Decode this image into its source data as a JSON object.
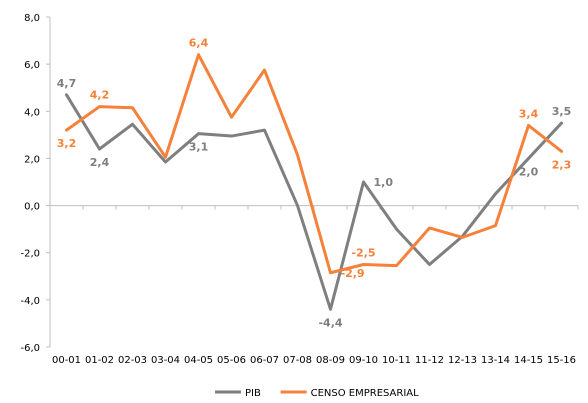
{
  "colors": {
    "pib": "#7f7f7f",
    "censo": "#f5813b",
    "axis": "#bfbfbf"
  },
  "chart_data": {
    "type": "line",
    "categories": [
      "00-01",
      "01-02",
      "02-03",
      "03-04",
      "04-05",
      "05-06",
      "06-07",
      "07-08",
      "08-09",
      "09-10",
      "10-11",
      "11-12",
      "12-13",
      "13-14",
      "14-15",
      "15-16"
    ],
    "ylim": [
      -6,
      8
    ],
    "yticks": [
      "8,0",
      "6,0",
      "4,0",
      "2,0",
      "0,0",
      "-2,0",
      "-4,0",
      "-6,0"
    ],
    "grid": false,
    "legend_position": "bottom",
    "series": [
      {
        "name": "PIB",
        "color": "#7f7f7f",
        "values": [
          4.7,
          2.4,
          3.45,
          1.85,
          3.05,
          2.95,
          3.2,
          0.0,
          -4.4,
          1.0,
          -1.0,
          -2.5,
          -1.3,
          0.5,
          2.0,
          3.5
        ],
        "labels": [
          {
            "index": 0,
            "text": "4,7",
            "pos": "above"
          },
          {
            "index": 1,
            "text": "2,4",
            "pos": "below"
          },
          {
            "index": 4,
            "text": "3,1",
            "pos": "below"
          },
          {
            "index": 8,
            "text": "-4,4",
            "pos": "below"
          },
          {
            "index": 9,
            "text": "1,0",
            "pos": "right"
          },
          {
            "index": 14,
            "text": "2,0",
            "pos": "below"
          },
          {
            "index": 15,
            "text": "3,5",
            "pos": "above"
          }
        ]
      },
      {
        "name": "CENSO EMPRESARIAL",
        "color": "#f5813b",
        "values": [
          3.2,
          4.2,
          4.15,
          2.05,
          6.4,
          3.75,
          5.75,
          2.15,
          -2.85,
          -2.5,
          -2.55,
          -0.95,
          -1.35,
          -0.85,
          3.4,
          2.3
        ],
        "labels": [
          {
            "index": 0,
            "text": "3,2",
            "pos": "below"
          },
          {
            "index": 1,
            "text": "4,2",
            "pos": "above"
          },
          {
            "index": 4,
            "text": "6,4",
            "pos": "above"
          },
          {
            "index": 8,
            "text": "-2,9",
            "pos": "right"
          },
          {
            "index": 9,
            "text": "-2,5",
            "pos": "above"
          },
          {
            "index": 14,
            "text": "3,4",
            "pos": "above"
          },
          {
            "index": 15,
            "text": "2,3",
            "pos": "below"
          }
        ]
      }
    ]
  }
}
